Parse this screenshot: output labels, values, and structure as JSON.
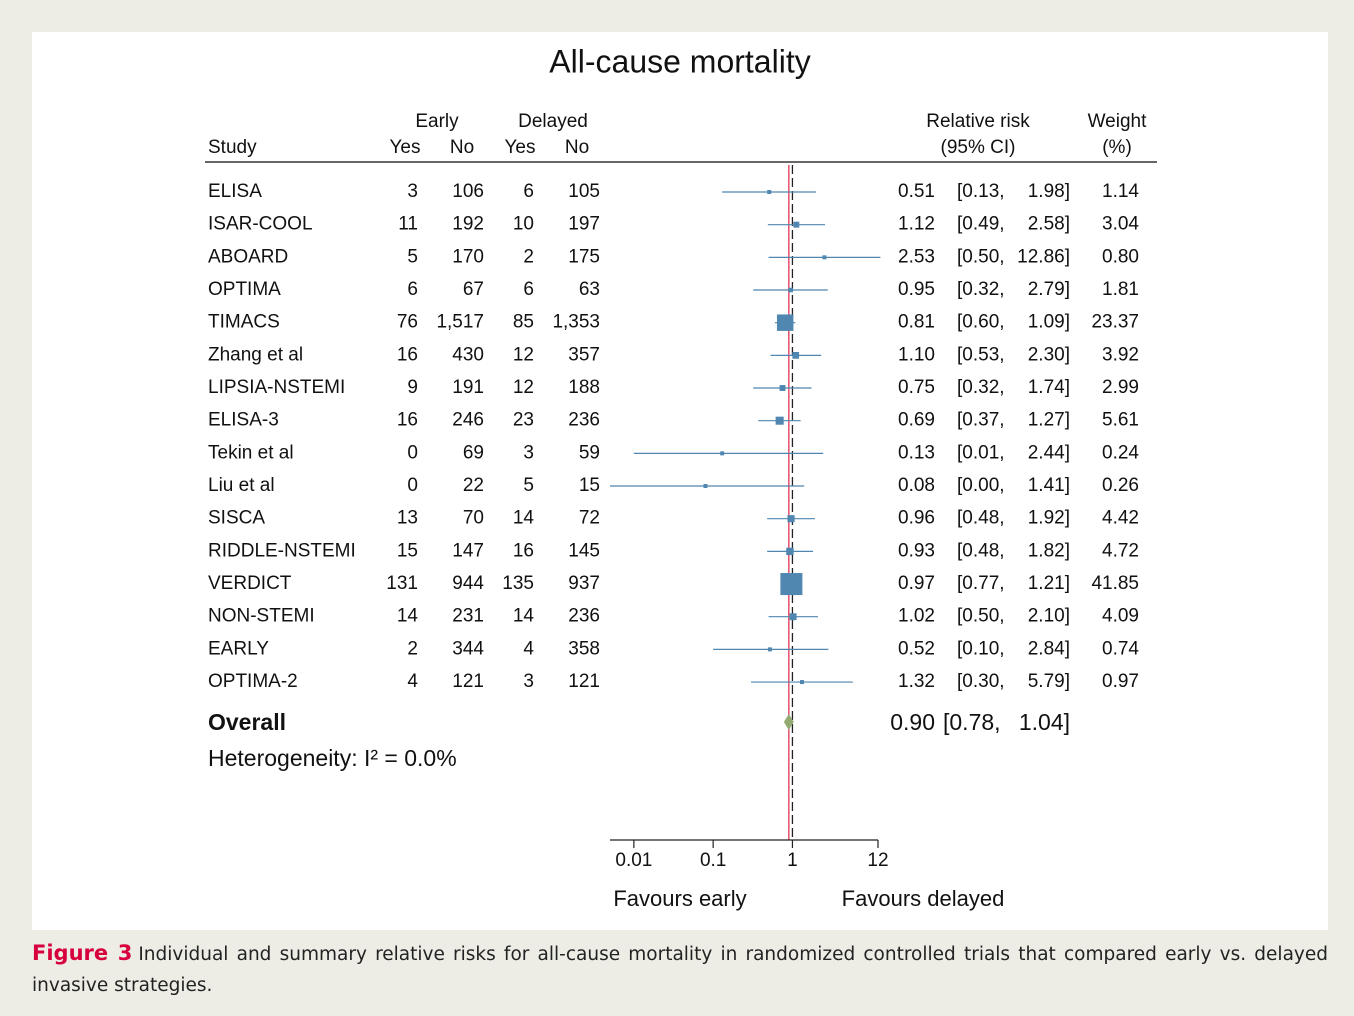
{
  "chart_data": {
    "type": "forest",
    "title": "All-cause mortality",
    "columns": {
      "study": "Study",
      "early": "Early",
      "delayed": "Delayed",
      "yes": "Yes",
      "no": "No",
      "rr": "Relative risk",
      "ci": "(95% CI)",
      "weight": "Weight",
      "weight_unit": "(%)"
    },
    "studies": [
      {
        "name": "ELISA",
        "counts": [
          3,
          106,
          6,
          105
        ],
        "rr": 0.51,
        "lo": 0.13,
        "hi": 1.98,
        "weight": 1.14,
        "value_labels": {
          "rr": "0.51",
          "lo": "[0.13,",
          "hi": "1.98]",
          "weight": "1.14"
        }
      },
      {
        "name": "ISAR-COOL",
        "counts": [
          11,
          192,
          10,
          197
        ],
        "rr": 1.12,
        "lo": 0.49,
        "hi": 2.58,
        "weight": 3.04,
        "value_labels": {
          "rr": "1.12",
          "lo": "[0.49,",
          "hi": "2.58]",
          "weight": "3.04"
        }
      },
      {
        "name": "ABOARD",
        "counts": [
          5,
          170,
          2,
          175
        ],
        "rr": 2.53,
        "lo": 0.5,
        "hi": 12.86,
        "weight": 0.8,
        "value_labels": {
          "rr": "2.53",
          "lo": "[0.50,",
          "hi": "12.86]",
          "weight": "0.80"
        }
      },
      {
        "name": "OPTIMA",
        "counts": [
          6,
          67,
          6,
          63
        ],
        "rr": 0.95,
        "lo": 0.32,
        "hi": 2.79,
        "weight": 1.81,
        "value_labels": {
          "rr": "0.95",
          "lo": "[0.32,",
          "hi": "2.79]",
          "weight": "1.81"
        }
      },
      {
        "name": "TIMACS",
        "counts": [
          76,
          {
            "value": 1517,
            "label": "1,517"
          },
          85,
          {
            "value": 1353,
            "label": "1,353"
          }
        ],
        "rr": 0.81,
        "lo": 0.6,
        "hi": 1.09,
        "weight": 23.37,
        "value_labels": {
          "rr": "0.81",
          "lo": "[0.60,",
          "hi": "1.09]",
          "weight": "23.37"
        }
      },
      {
        "name": "Zhang et al",
        "counts": [
          16,
          430,
          12,
          357
        ],
        "rr": 1.1,
        "lo": 0.53,
        "hi": 2.3,
        "weight": 3.92,
        "value_labels": {
          "rr": "1.10",
          "lo": "[0.53,",
          "hi": "2.30]",
          "weight": "3.92"
        }
      },
      {
        "name": "LIPSIA-NSTEMI",
        "counts": [
          9,
          191,
          12,
          188
        ],
        "rr": 0.75,
        "lo": 0.32,
        "hi": 1.74,
        "weight": 2.99,
        "value_labels": {
          "rr": "0.75",
          "lo": "[0.32,",
          "hi": "1.74]",
          "weight": "2.99"
        }
      },
      {
        "name": "ELISA-3",
        "counts": [
          16,
          246,
          23,
          236
        ],
        "rr": 0.69,
        "lo": 0.37,
        "hi": 1.27,
        "weight": 5.61,
        "value_labels": {
          "rr": "0.69",
          "lo": "[0.37,",
          "hi": "1.27]",
          "weight": "5.61"
        }
      },
      {
        "name": "Tekin et al",
        "counts": [
          0,
          69,
          3,
          59
        ],
        "rr": 0.13,
        "lo": 0.01,
        "hi": 2.44,
        "weight": 0.24,
        "value_labels": {
          "rr": "0.13",
          "lo": "[0.01,",
          "hi": "2.44]",
          "weight": "0.24"
        }
      },
      {
        "name": "Liu et al",
        "counts": [
          0,
          22,
          5,
          15
        ],
        "rr": 0.08,
        "lo": 0.0,
        "hi": 1.41,
        "weight": 0.26,
        "value_labels": {
          "rr": "0.08",
          "lo": "[0.00,",
          "hi": "1.41]",
          "weight": "0.26"
        }
      },
      {
        "name": "SISCA",
        "counts": [
          13,
          70,
          14,
          72
        ],
        "rr": 0.96,
        "lo": 0.48,
        "hi": 1.92,
        "weight": 4.42,
        "value_labels": {
          "rr": "0.96",
          "lo": "[0.48,",
          "hi": "1.92]",
          "weight": "4.42"
        }
      },
      {
        "name": "RIDDLE-NSTEMI",
        "counts": [
          15,
          147,
          16,
          145
        ],
        "rr": 0.93,
        "lo": 0.48,
        "hi": 1.82,
        "weight": 4.72,
        "value_labels": {
          "rr": "0.93",
          "lo": "[0.48,",
          "hi": "1.82]",
          "weight": "4.72"
        }
      },
      {
        "name": "VERDICT",
        "counts": [
          131,
          944,
          135,
          937
        ],
        "rr": 0.97,
        "lo": 0.77,
        "hi": 1.21,
        "weight": 41.85,
        "value_labels": {
          "rr": "0.97",
          "lo": "[0.77,",
          "hi": "1.21]",
          "weight": "41.85"
        }
      },
      {
        "name": "NON-STEMI",
        "counts": [
          14,
          231,
          14,
          236
        ],
        "rr": 1.02,
        "lo": 0.5,
        "hi": 2.1,
        "weight": 4.09,
        "value_labels": {
          "rr": "1.02",
          "lo": "[0.50,",
          "hi": "2.10]",
          "weight": "4.09"
        }
      },
      {
        "name": "EARLY",
        "counts": [
          2,
          344,
          4,
          358
        ],
        "rr": 0.52,
        "lo": 0.1,
        "hi": 2.84,
        "weight": 0.74,
        "value_labels": {
          "rr": "0.52",
          "lo": "[0.10,",
          "hi": "2.84]",
          "weight": "0.74"
        }
      },
      {
        "name": "OPTIMA-2",
        "counts": [
          4,
          121,
          3,
          121
        ],
        "rr": 1.32,
        "lo": 0.3,
        "hi": 5.79,
        "weight": 0.97,
        "value_labels": {
          "rr": "1.32",
          "lo": "[0.30,",
          "hi": "5.79]",
          "weight": "0.97"
        }
      }
    ],
    "overall": {
      "name": "Overall",
      "rr": 0.9,
      "lo": 0.78,
      "hi": 1.04,
      "value_labels": {
        "rr": "0.90",
        "lo": "[0.78,",
        "hi": "1.04]"
      }
    },
    "heterogeneity": "Heterogeneity: I² = 0.0%",
    "log_x": true,
    "xlim": [
      0.005,
      12
    ],
    "xticks": [
      0.01,
      0.1,
      1,
      12
    ],
    "reference_line": 1,
    "favours": [
      "Favours early",
      "Favours delayed"
    ],
    "marker_color": "#4f87b0",
    "overall_color": "#93ab72",
    "estimate_line_color": "#e4506c"
  },
  "caption": {
    "label": "Figure 3",
    "text": "Individual and summary relative risks for all-cause mortality in randomized controlled trials that compared early vs. delayed invasive strategies."
  }
}
